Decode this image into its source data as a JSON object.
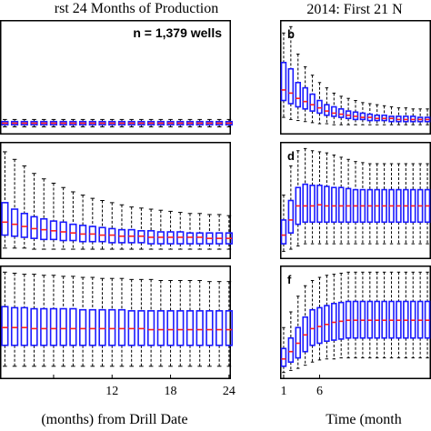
{
  "headings": {
    "left": "rst 24 Months of Production",
    "right": "2014: First 21 N"
  },
  "annotation": "n = 1,379 wells",
  "xlabels": {
    "left": "(months) from Drill Date",
    "right": "Time (month"
  },
  "colors": {
    "box": "#1a1aff",
    "median": "#ff2020",
    "whisker": "#000000",
    "axis": "#000000"
  },
  "chart_data": [
    {
      "id": "a",
      "type": "box",
      "label": "",
      "x": [
        1,
        2,
        3,
        4,
        5,
        6,
        7,
        8,
        9,
        10,
        11,
        12,
        13,
        14,
        15,
        16,
        17,
        18,
        19,
        20,
        21,
        22,
        23,
        24
      ],
      "ylim": [
        0,
        100
      ],
      "q1": [
        5.0,
        5.0,
        5.0,
        5.0,
        5.0,
        5.0,
        5.0,
        5.0,
        5.0,
        5.0,
        5.0,
        5.0,
        5.0,
        5.0,
        5.0,
        5.0,
        5.0,
        5.0,
        5.0,
        5.0,
        5.0,
        5.0,
        5.0,
        5.0
      ],
      "median": [
        6.5,
        6.5,
        6.5,
        6.5,
        6.5,
        6.5,
        6.5,
        6.5,
        6.5,
        6.5,
        6.5,
        6.5,
        6.5,
        6.5,
        6.5,
        6.5,
        6.5,
        6.5,
        6.5,
        6.5,
        6.5,
        6.5,
        6.5,
        6.5
      ],
      "q3": [
        8.0,
        8.0,
        8.0,
        8.0,
        8.0,
        8.0,
        8.0,
        8.0,
        8.0,
        8.0,
        8.0,
        8.0,
        8.0,
        8.0,
        8.0,
        8.0,
        8.0,
        8.0,
        8.0,
        8.0,
        8.0,
        8.0,
        8.0,
        8.0
      ],
      "whisk_lo": [
        3.0,
        3.0,
        3.0,
        3.0,
        3.0,
        3.0,
        3.0,
        3.0,
        3.0,
        3.0,
        3.0,
        3.0,
        3.0,
        3.0,
        3.0,
        3.0,
        3.0,
        3.0,
        3.0,
        3.0,
        3.0,
        3.0,
        3.0,
        3.0
      ],
      "whisk_hi": [
        10,
        10,
        10,
        10,
        10,
        10,
        10,
        10,
        10,
        10,
        10,
        10,
        10,
        10,
        10,
        10,
        10,
        10,
        10,
        10,
        10,
        10,
        10,
        10
      ]
    },
    {
      "id": "b",
      "type": "box",
      "label": "b",
      "x": [
        1,
        2,
        3,
        4,
        5,
        6,
        7,
        8,
        9,
        10,
        11,
        12,
        13,
        14,
        15,
        16,
        17,
        18,
        19,
        20,
        21
      ],
      "ylim": [
        0,
        100
      ],
      "q1": [
        28,
        25,
        22,
        20,
        18,
        16,
        14,
        13,
        12,
        11,
        10,
        10,
        9,
        9,
        9,
        8,
        8,
        8,
        8,
        8,
        8
      ],
      "median": [
        38,
        35,
        30,
        27,
        24,
        21,
        18,
        16,
        15,
        14,
        13,
        12,
        12,
        11,
        11,
        11,
        10,
        10,
        10,
        10,
        10
      ],
      "q3": [
        64,
        58,
        45,
        40,
        34,
        28,
        24,
        22,
        20,
        18,
        17,
        16,
        15,
        14,
        14,
        13,
        13,
        13,
        13,
        12,
        12
      ],
      "whisk_lo": [
        12,
        10,
        9,
        8,
        7,
        6,
        6,
        5,
        5,
        5,
        5,
        5,
        5,
        5,
        5,
        5,
        5,
        5,
        5,
        5,
        5
      ],
      "whisk_hi": [
        92,
        98,
        72,
        60,
        52,
        45,
        40,
        35,
        32,
        30,
        28,
        26,
        25,
        24,
        23,
        22,
        21,
        21,
        20,
        20,
        20
      ]
    },
    {
      "id": "c",
      "type": "box",
      "label": "",
      "x": [
        1,
        2,
        3,
        4,
        5,
        6,
        7,
        8,
        9,
        10,
        11,
        12,
        13,
        14,
        15,
        16,
        17,
        18,
        19,
        20,
        21,
        22,
        23,
        24
      ],
      "ylim": [
        0,
        100
      ],
      "q1": [
        18,
        17,
        16,
        15,
        14,
        14,
        13,
        13,
        12,
        12,
        12,
        11,
        11,
        11,
        11,
        10,
        10,
        10,
        10,
        10,
        10,
        10,
        10,
        10
      ],
      "median": [
        30,
        28,
        26,
        24,
        23,
        22,
        21,
        20,
        19,
        19,
        18,
        18,
        17,
        17,
        17,
        16,
        16,
        16,
        16,
        16,
        16,
        15,
        15,
        15
      ],
      "q3": [
        48,
        42,
        38,
        35,
        33,
        31,
        30,
        28,
        27,
        26,
        25,
        24,
        23,
        23,
        22,
        22,
        21,
        21,
        21,
        20,
        20,
        20,
        20,
        20
      ],
      "whisk_lo": [
        6,
        6,
        6,
        5,
        5,
        5,
        5,
        5,
        5,
        5,
        5,
        5,
        5,
        5,
        5,
        5,
        5,
        5,
        5,
        5,
        5,
        5,
        5,
        5
      ],
      "whisk_hi": [
        95,
        88,
        82,
        75,
        70,
        66,
        62,
        58,
        55,
        52,
        50,
        48,
        46,
        44,
        43,
        42,
        41,
        40,
        39,
        38,
        38,
        37,
        37,
        36
      ]
    },
    {
      "id": "d",
      "type": "box",
      "label": "d",
      "x": [
        1,
        2,
        3,
        4,
        5,
        6,
        7,
        8,
        9,
        10,
        11,
        12,
        13,
        14,
        15,
        16,
        17,
        18,
        19,
        20,
        21
      ],
      "ylim": [
        0,
        100
      ],
      "q1": [
        10,
        20,
        28,
        30,
        30,
        30,
        30,
        30,
        30,
        30,
        30,
        30,
        30,
        30,
        30,
        30,
        30,
        30,
        30,
        30,
        30
      ],
      "median": [
        18,
        32,
        45,
        45,
        45,
        46,
        45,
        45,
        45,
        45,
        45,
        45,
        45,
        45,
        45,
        45,
        45,
        45,
        45,
        45,
        45
      ],
      "q3": [
        32,
        50,
        62,
        65,
        64,
        64,
        63,
        62,
        62,
        61,
        60,
        60,
        60,
        60,
        60,
        60,
        60,
        60,
        60,
        60,
        60
      ],
      "whisk_lo": [
        3,
        5,
        8,
        10,
        10,
        10,
        10,
        10,
        10,
        10,
        10,
        10,
        10,
        10,
        10,
        10,
        10,
        10,
        10,
        10,
        10
      ],
      "whisk_hi": [
        55,
        82,
        96,
        98,
        96,
        95,
        94,
        92,
        90,
        88,
        86,
        85,
        84,
        84,
        84,
        84,
        84,
        84,
        84,
        84,
        84
      ]
    },
    {
      "id": "e",
      "type": "box",
      "label": "",
      "x": [
        1,
        2,
        3,
        4,
        5,
        6,
        7,
        8,
        9,
        10,
        11,
        12,
        13,
        14,
        15,
        16,
        17,
        18,
        19,
        20,
        21,
        22,
        23,
        24
      ],
      "ylim": [
        0,
        100
      ],
      "q1": [
        28,
        28,
        28,
        28,
        28,
        28,
        28,
        28,
        28,
        28,
        28,
        28,
        28,
        28,
        28,
        28,
        28,
        28,
        28,
        28,
        28,
        28,
        28,
        28
      ],
      "median": [
        45,
        45,
        45,
        44,
        44,
        44,
        44,
        44,
        44,
        44,
        44,
        44,
        44,
        44,
        44,
        43,
        43,
        43,
        43,
        43,
        43,
        43,
        43,
        43
      ],
      "q3": [
        65,
        64,
        64,
        63,
        63,
        63,
        63,
        63,
        62,
        62,
        62,
        62,
        62,
        61,
        61,
        61,
        61,
        61,
        61,
        61,
        61,
        61,
        61,
        61
      ],
      "whisk_lo": [
        8,
        8,
        8,
        8,
        8,
        8,
        8,
        8,
        8,
        8,
        8,
        8,
        8,
        8,
        8,
        8,
        8,
        8,
        8,
        8,
        8,
        8,
        8,
        8
      ],
      "whisk_hi": [
        98,
        97,
        96,
        96,
        95,
        95,
        94,
        94,
        93,
        93,
        92,
        92,
        92,
        91,
        91,
        91,
        90,
        90,
        90,
        90,
        90,
        89,
        89,
        89
      ]
    },
    {
      "id": "f",
      "type": "box",
      "label": "f",
      "x": [
        1,
        2,
        3,
        4,
        5,
        6,
        7,
        8,
        9,
        10,
        11,
        12,
        13,
        14,
        15,
        16,
        17,
        18,
        19,
        20,
        21
      ],
      "ylim": [
        0,
        100
      ],
      "q1": [
        8,
        12,
        16,
        22,
        28,
        30,
        32,
        33,
        34,
        35,
        35,
        35,
        35,
        35,
        35,
        35,
        35,
        35,
        35,
        35,
        35
      ],
      "median": [
        15,
        22,
        30,
        38,
        44,
        46,
        48,
        50,
        51,
        52,
        52,
        52,
        52,
        52,
        52,
        52,
        52,
        52,
        52,
        52,
        52
      ],
      "q3": [
        25,
        35,
        45,
        55,
        62,
        64,
        66,
        68,
        69,
        70,
        70,
        70,
        70,
        70,
        70,
        70,
        70,
        70,
        70,
        70,
        70
      ],
      "whisk_lo": [
        2,
        4,
        6,
        9,
        12,
        14,
        15,
        15,
        16,
        16,
        16,
        16,
        16,
        16,
        16,
        16,
        16,
        16,
        16,
        16,
        16
      ],
      "whisk_hi": [
        45,
        60,
        75,
        85,
        90,
        93,
        95,
        96,
        97,
        98,
        98,
        98,
        98,
        98,
        98,
        98,
        98,
        98,
        98,
        98,
        98
      ]
    }
  ],
  "xticks": {
    "left": [
      6,
      12,
      18,
      24
    ],
    "left_labels": [
      "",
      "12",
      "18",
      "24"
    ],
    "right": [
      1,
      6
    ],
    "right_labels": [
      "1",
      "6"
    ]
  }
}
